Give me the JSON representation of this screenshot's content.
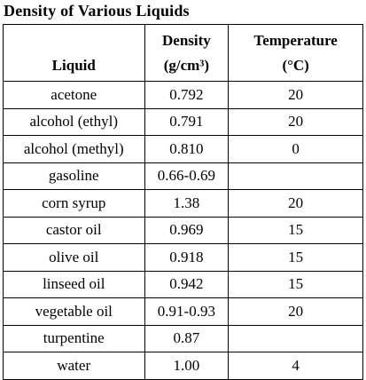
{
  "header": {
    "title": "Density of Various Liquids"
  },
  "table": {
    "columns": [
      [
        "Liquid"
      ],
      [
        "Density",
        "(g/cm³)"
      ],
      [
        "Temperature",
        "(°C)"
      ]
    ],
    "rows": [
      [
        "acetone",
        "0.792",
        "20"
      ],
      [
        "alcohol (ethyl)",
        "0.791",
        "20"
      ],
      [
        "alcohol (methyl)",
        "0.810",
        "0"
      ],
      [
        "gasoline",
        "0.66-0.69",
        null
      ],
      [
        "corn syrup",
        "1.38",
        "20"
      ],
      [
        "castor oil",
        "0.969",
        "15"
      ],
      [
        "olive oil",
        "0.918",
        "15"
      ],
      [
        "linseed oil",
        "0.942",
        "15"
      ],
      [
        "vegetable oil",
        "0.91-0.93",
        "20"
      ],
      [
        "turpentine",
        "0.87",
        null
      ],
      [
        "water",
        "1.00",
        "4"
      ]
    ]
  }
}
